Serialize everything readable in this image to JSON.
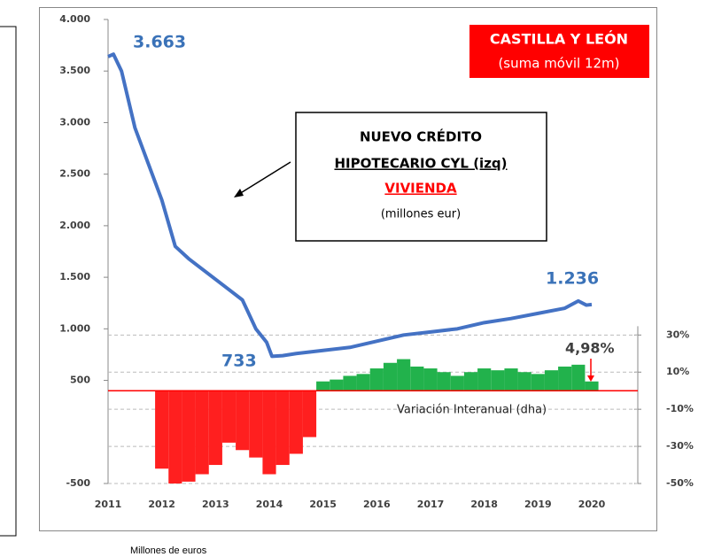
{
  "chart_data": {
    "type": "line_bar",
    "title": "CASTILLA Y LEÓN",
    "subtitle": "(suma móvil 12m)",
    "box_text": [
      "NUEVO CRÉDITO",
      "HIPOTECARIO CYL (izq)",
      "VIVIENDA",
      "(millones eur)"
    ],
    "bar_label": "Variación Interanual (dha)",
    "footer": "Millones de euros",
    "annotations": [
      "3.663",
      "733",
      "1.236",
      "4,98%"
    ],
    "xlim": [
      2011,
      2020
    ],
    "xticks": [
      2011,
      2012,
      2013,
      2014,
      2015,
      2016,
      2017,
      2018,
      2019,
      2020
    ],
    "ylim": [
      -500,
      4000
    ],
    "yticks": [
      {
        "value": -500,
        "label": "-500"
      },
      {
        "value": 500,
        "label": "500"
      },
      {
        "value": 1000,
        "label": "1.000"
      },
      {
        "value": 1500,
        "label": "1.500"
      },
      {
        "value": 2000,
        "label": "2.000"
      },
      {
        "value": 2500,
        "label": "2.500"
      },
      {
        "value": 3000,
        "label": "3.000"
      },
      {
        "value": 3500,
        "label": "3.500"
      },
      {
        "value": 4000,
        "label": "4.000"
      }
    ],
    "y2lim": [
      -50,
      200
    ],
    "y2ticks": [
      {
        "value": -50,
        "label": "-50%"
      },
      {
        "value": -30,
        "label": "-30%"
      },
      {
        "value": -10,
        "label": "-10%"
      },
      {
        "value": 10,
        "label": "10%"
      },
      {
        "value": 30,
        "label": "30%"
      }
    ],
    "series": [
      {
        "type": "line",
        "color": "#4472c4",
        "x": [
          2011.0,
          2011.1,
          2011.25,
          2011.5,
          2011.75,
          2012.0,
          2012.25,
          2012.5,
          2012.75,
          2013.0,
          2013.25,
          2013.5,
          2013.75,
          2013.95,
          2014.05,
          2014.25,
          2014.5,
          2015.0,
          2015.5,
          2016.0,
          2016.5,
          2017.0,
          2017.5,
          2018.0,
          2018.5,
          2019.0,
          2019.5,
          2019.75,
          2019.9,
          2020.0
        ],
        "values": [
          3640,
          3663,
          3500,
          2950,
          2600,
          2250,
          1800,
          1680,
          1580,
          1480,
          1380,
          1280,
          1000,
          870,
          733,
          740,
          760,
          790,
          820,
          880,
          940,
          970,
          1000,
          1060,
          1100,
          1150,
          1200,
          1270,
          1230,
          1236
        ]
      },
      {
        "type": "bar",
        "axis": "y2",
        "color": "#22b24c",
        "negative_color": "#ff1f1f",
        "x": [
          2012.0,
          2012.25,
          2012.5,
          2012.75,
          2013.0,
          2013.25,
          2013.5,
          2013.75,
          2014.0,
          2014.25,
          2014.5,
          2014.75,
          2015.0,
          2015.25,
          2015.5,
          2015.75,
          2016.0,
          2016.25,
          2016.5,
          2016.75,
          2017.0,
          2017.25,
          2017.5,
          2017.75,
          2018.0,
          2018.25,
          2018.5,
          2018.75,
          2019.0,
          2019.25,
          2019.5,
          2019.75,
          2020.0
        ],
        "values": [
          -42,
          -50,
          -49,
          -45,
          -40,
          -28,
          -32,
          -36,
          -45,
          -40,
          -34,
          -25,
          5,
          6,
          8,
          9,
          12,
          15,
          17,
          13,
          12,
          10,
          8,
          10,
          12,
          11,
          12,
          10,
          9,
          11,
          13,
          14,
          4.98
        ]
      }
    ]
  }
}
